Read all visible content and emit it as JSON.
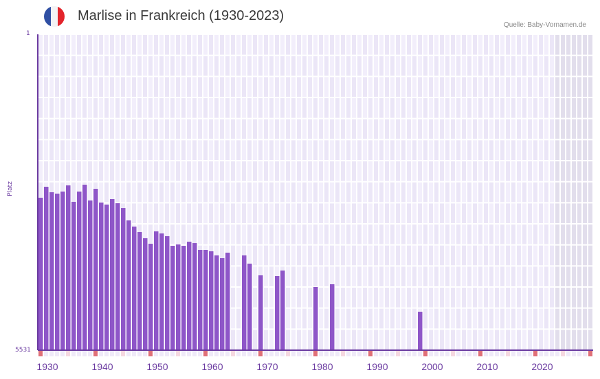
{
  "header": {
    "title": "Marlise in Frankreich (1930-2023)",
    "source": "Quelle: Baby-Vornamen.de",
    "flag_colors": [
      "#2f4fa3",
      "#f3f3f5",
      "#e3242b"
    ]
  },
  "colors": {
    "bar": "#8e56c8",
    "axis": "#6a3aa0",
    "grid_bg_a": "#f2eefb",
    "grid_bg_b": "#ebe6f7",
    "future_bg": "#e2deec",
    "marker_decade": "#e07078",
    "marker_half": "#f5d8e0",
    "marker_other": "#efeaf8"
  },
  "chart_data": {
    "type": "bar",
    "title": "Marlise in Frankreich (1930-2023)",
    "xlabel": "",
    "ylabel": "Platz",
    "ylim": [
      5531,
      1
    ],
    "y_inverted": true,
    "x_range": [
      1930,
      2030
    ],
    "x_ticks": [
      1930,
      1940,
      1950,
      1960,
      1970,
      1980,
      1990,
      2000,
      2010,
      2020
    ],
    "y_ticks": [
      1,
      5531
    ],
    "future_shaded_from": 2024,
    "grid": true,
    "points": [
      {
        "year": 1930,
        "rank": 2862
      },
      {
        "year": 1931,
        "rank": 2670
      },
      {
        "year": 1932,
        "rank": 2766
      },
      {
        "year": 1933,
        "rank": 2790
      },
      {
        "year": 1934,
        "rank": 2754
      },
      {
        "year": 1935,
        "rank": 2646
      },
      {
        "year": 1936,
        "rank": 2934
      },
      {
        "year": 1937,
        "rank": 2754
      },
      {
        "year": 1938,
        "rank": 2634
      },
      {
        "year": 1939,
        "rank": 2910
      },
      {
        "year": 1940,
        "rank": 2706
      },
      {
        "year": 1941,
        "rank": 2946
      },
      {
        "year": 1942,
        "rank": 2982
      },
      {
        "year": 1943,
        "rank": 2886
      },
      {
        "year": 1944,
        "rank": 2958
      },
      {
        "year": 1945,
        "rank": 3043
      },
      {
        "year": 1946,
        "rank": 3259
      },
      {
        "year": 1947,
        "rank": 3367
      },
      {
        "year": 1948,
        "rank": 3463
      },
      {
        "year": 1949,
        "rank": 3571
      },
      {
        "year": 1950,
        "rank": 3668
      },
      {
        "year": 1951,
        "rank": 3451
      },
      {
        "year": 1952,
        "rank": 3487
      },
      {
        "year": 1953,
        "rank": 3535
      },
      {
        "year": 1954,
        "rank": 3704
      },
      {
        "year": 1955,
        "rank": 3680
      },
      {
        "year": 1956,
        "rank": 3704
      },
      {
        "year": 1957,
        "rank": 3632
      },
      {
        "year": 1958,
        "rank": 3656
      },
      {
        "year": 1959,
        "rank": 3776
      },
      {
        "year": 1960,
        "rank": 3776
      },
      {
        "year": 1961,
        "rank": 3800
      },
      {
        "year": 1962,
        "rank": 3872
      },
      {
        "year": 1963,
        "rank": 3920
      },
      {
        "year": 1964,
        "rank": 3824
      },
      {
        "year": 1967,
        "rank": 3872
      },
      {
        "year": 1968,
        "rank": 4016
      },
      {
        "year": 1970,
        "rank": 4221
      },
      {
        "year": 1973,
        "rank": 4233
      },
      {
        "year": 1974,
        "rank": 4137
      },
      {
        "year": 1980,
        "rank": 4425
      },
      {
        "year": 1983,
        "rank": 4377
      },
      {
        "year": 1999,
        "rank": 4858
      }
    ]
  },
  "axis": {
    "y_top_label": "1",
    "y_bottom_label": "5531",
    "y_title": "Platz"
  }
}
